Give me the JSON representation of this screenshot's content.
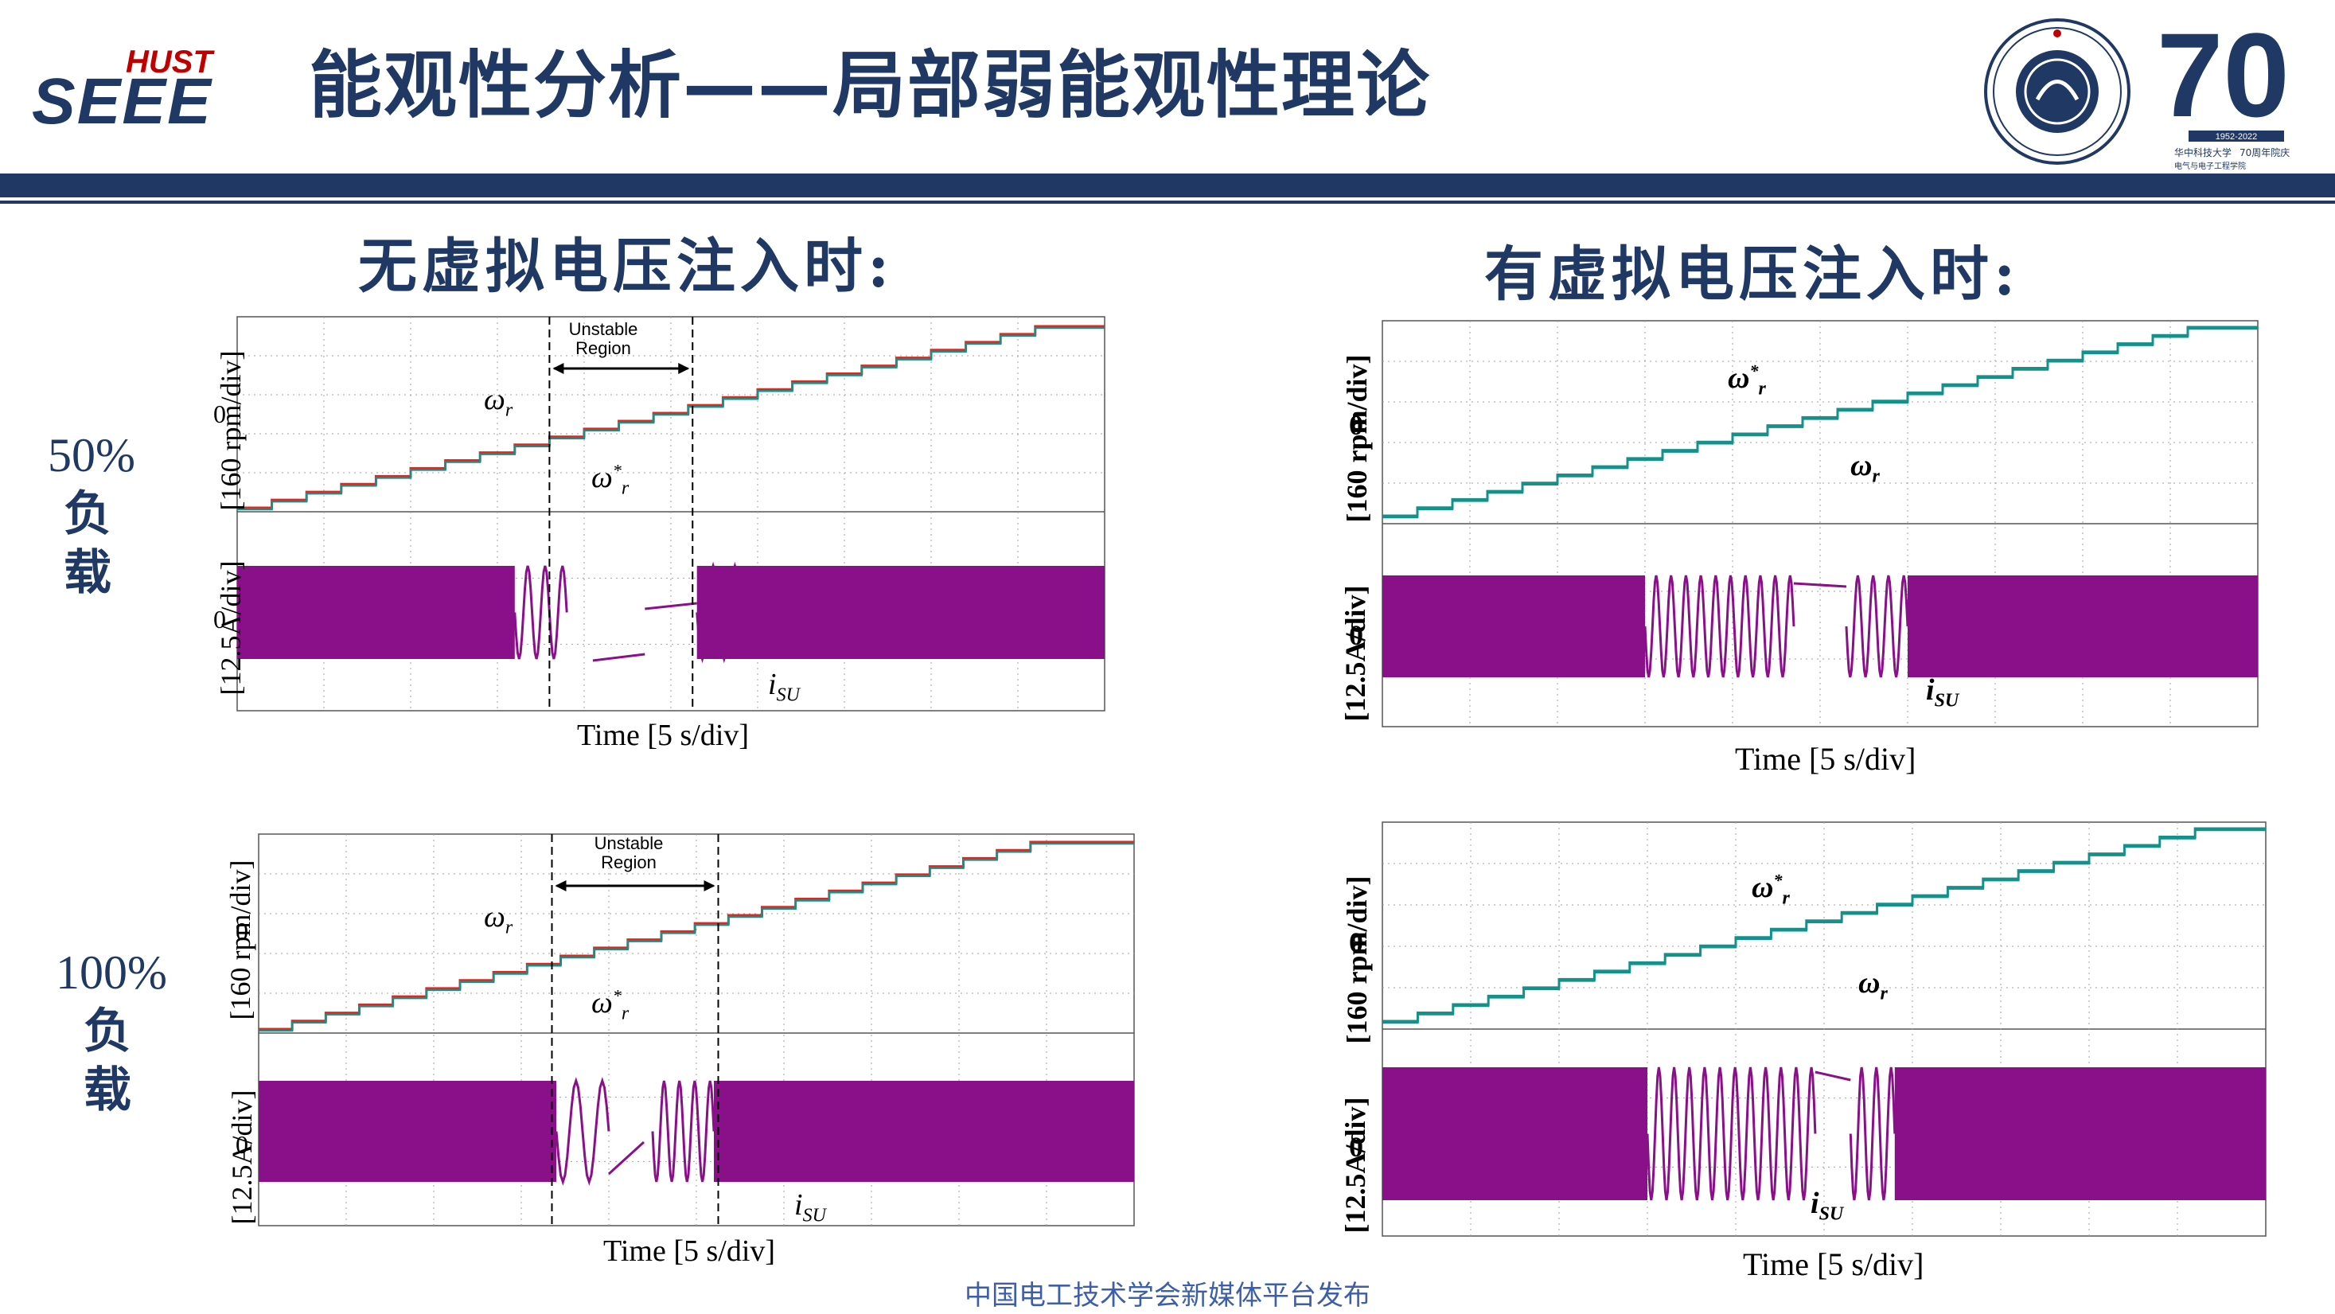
{
  "header": {
    "logo_text_top": "HUST",
    "logo_text_main": "SEEE",
    "title": "能观性分析——局部弱能观性理论",
    "anniv_logo_number": "70",
    "anniv_years": "1952-2022",
    "anniv_line1": "华中科技大学",
    "anniv_line2": "70周年院庆",
    "anniv_line3": "电气与电子工程学院"
  },
  "columns": {
    "left_title": "无虚拟电压注入时:",
    "right_title": "有虚拟电压注入时:"
  },
  "rows": {
    "load_50_pct": "50%",
    "load_50_cn": "负 载",
    "load_100_pct": "100%",
    "load_100_cn": "负 载"
  },
  "plot_text": {
    "speed_ylabel": "[160 rpm/div]",
    "current_ylabel": "[12.5A/div]",
    "zero": "0",
    "xlabel": "Time [5 s/div]",
    "unstable_line1": "Unstable",
    "unstable_line2": "Region",
    "omega": "ω",
    "sub_r": "r",
    "star": "*",
    "i": "i",
    "sub_su": "SU"
  },
  "colors": {
    "navy": "#1f3864",
    "reference": "#e8231b",
    "speed": "#14918a",
    "current": "#8a108a",
    "grid": "#a0a0a0"
  },
  "footer": "中国电工技术学会新媒体平台发布"
}
